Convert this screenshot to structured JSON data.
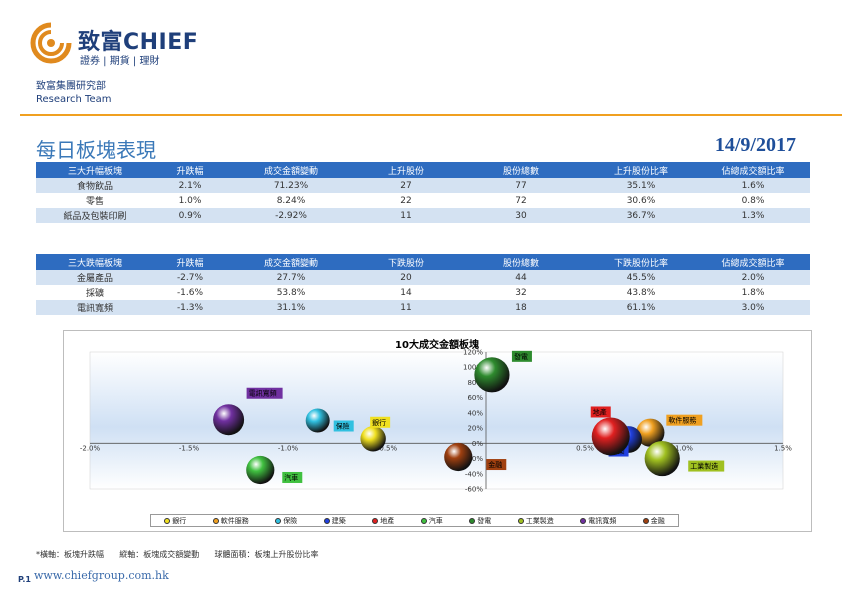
{
  "header": {
    "logo_main": "致富CHIEF",
    "logo_sub": "證券 | 期貨 | 理財",
    "team_cn": "致富集團研究部",
    "team_en": "Research Team"
  },
  "page": {
    "title": "每日板塊表現",
    "date": "14/9/2017"
  },
  "table_up": {
    "headers": [
      "三大升幅板塊",
      "升跌幅",
      "成交金額變動",
      "上升股份",
      "股份總數",
      "上升股份比率",
      "佔總成交額比率"
    ],
    "rows": [
      [
        "食物飲品",
        "2.1%",
        "71.23%",
        "27",
        "77",
        "35.1%",
        "1.6%"
      ],
      [
        "零售",
        "1.0%",
        "8.24%",
        "22",
        "72",
        "30.6%",
        "0.8%"
      ],
      [
        "紙品及包裝印刷",
        "0.9%",
        "-2.92%",
        "11",
        "30",
        "36.7%",
        "1.3%"
      ]
    ]
  },
  "table_down": {
    "headers": [
      "三大跌幅板塊",
      "升跌幅",
      "成交金額變動",
      "下跌股份",
      "股份總數",
      "下跌股份比率",
      "佔總成交額比率"
    ],
    "rows": [
      [
        "金屬產品",
        "-2.7%",
        "27.7%",
        "20",
        "44",
        "45.5%",
        "2.0%"
      ],
      [
        "採礦",
        "-1.6%",
        "53.8%",
        "14",
        "32",
        "43.8%",
        "1.8%"
      ],
      [
        "電訊寬頻",
        "-1.3%",
        "31.1%",
        "11",
        "18",
        "61.1%",
        "3.0%"
      ]
    ]
  },
  "chart_data": {
    "type": "scatter",
    "title": "10大成交金額板塊",
    "xlim": [
      -2.0,
      1.5
    ],
    "ylim": [
      -60,
      120
    ],
    "x_ticks": [
      "-2.0%",
      "-1.5%",
      "-1.0%",
      "-0.5%",
      "0.5%",
      "1.0%",
      "1.5%"
    ],
    "x_tick_values": [
      -2.0,
      -1.5,
      -1.0,
      -0.5,
      0.5,
      1.0,
      1.5
    ],
    "y_ticks": [
      "120%",
      "100%",
      "80%",
      "60%",
      "40%",
      "20%",
      "0%",
      "-20%",
      "-40%",
      "-60%"
    ],
    "y_tick_values": [
      120,
      100,
      80,
      60,
      40,
      20,
      0,
      -20,
      -40,
      -60
    ],
    "grid": false,
    "legend": "bottom",
    "series": [
      {
        "name": "銀行",
        "x": -0.57,
        "y": 6,
        "size": 0.55,
        "color": "#f0e020"
      },
      {
        "name": "軟件服務",
        "x": 0.83,
        "y": 14,
        "size": 0.65,
        "color": "#f0a020"
      },
      {
        "name": "保險",
        "x": -0.85,
        "y": 30,
        "size": 0.5,
        "color": "#30c0e0"
      },
      {
        "name": "建築",
        "x": 0.72,
        "y": 5,
        "size": 0.6,
        "color": "#2040e0"
      },
      {
        "name": "地產",
        "x": 0.63,
        "y": 9,
        "size": 1.0,
        "color": "#e02020"
      },
      {
        "name": "汽車",
        "x": -1.14,
        "y": -35,
        "size": 0.65,
        "color": "#40c040"
      },
      {
        "name": "發電",
        "x": 0.03,
        "y": 90,
        "size": 0.9,
        "color": "#2e8b2e"
      },
      {
        "name": "工業製造",
        "x": 0.89,
        "y": -20,
        "size": 0.9,
        "color": "#a0c020"
      },
      {
        "name": "電訊寬頻",
        "x": -1.3,
        "y": 31,
        "size": 0.75,
        "color": "#7030a0"
      },
      {
        "name": "金融",
        "x": -0.14,
        "y": -18,
        "size": 0.65,
        "color": "#a04010"
      }
    ]
  },
  "footnote": "*橫軸：板塊升跌幅      縱軸：板塊成交額變動      球體面積：板塊上升股份比率",
  "footer": {
    "page_no": "P.1",
    "website": "www.chiefgroup.com.hk"
  }
}
